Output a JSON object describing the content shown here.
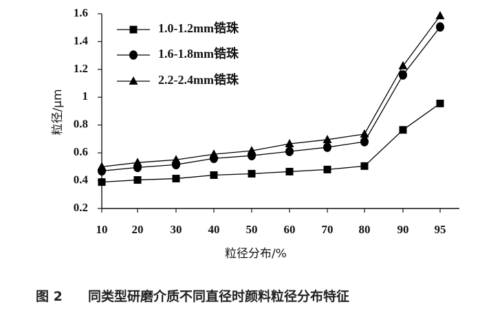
{
  "chart_data": {
    "type": "line",
    "categories": [
      "10",
      "20",
      "30",
      "40",
      "50",
      "60",
      "70",
      "80",
      "90",
      "95"
    ],
    "ylabel": "粒径/μm",
    "xlabel": "粒径分布/%",
    "ylim": [
      0.2,
      1.6
    ],
    "yticks": [
      "0.2",
      "0.4",
      "0.6",
      "0.8",
      "1",
      "1.2",
      "1.4",
      "1.6"
    ],
    "grid": false,
    "legend_position": "top-left",
    "series": [
      {
        "name": "1.0-1.2mm锆珠",
        "marker": "square",
        "values": [
          0.39,
          0.405,
          0.415,
          0.44,
          0.45,
          0.465,
          0.48,
          0.505,
          0.765,
          0.955
        ]
      },
      {
        "name": "1.6-1.8mm锆珠",
        "marker": "circle",
        "values": [
          0.47,
          0.495,
          0.515,
          0.56,
          0.58,
          0.61,
          0.64,
          0.68,
          1.16,
          1.505
        ]
      },
      {
        "name": "2.2-2.4mm锆珠",
        "marker": "triangle",
        "values": [
          0.5,
          0.53,
          0.55,
          0.59,
          0.615,
          0.665,
          0.695,
          0.735,
          1.225,
          1.585
        ]
      }
    ]
  },
  "caption": {
    "figure_label": "图 2",
    "text": "同类型研磨介质不同直径时颜料粒径分布特征"
  }
}
